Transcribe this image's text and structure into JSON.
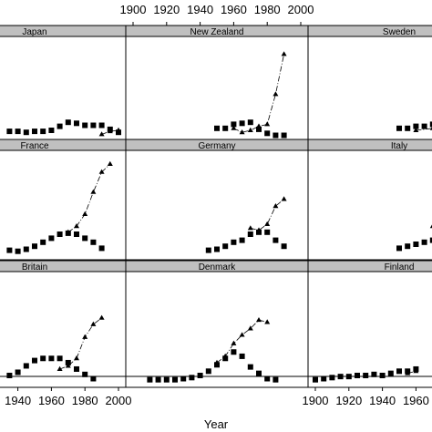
{
  "chart_data": {
    "type": "scatter",
    "layout": "trellis 3x3 (lattice), panels clipped at left and right edges of image",
    "xlabel": "Year",
    "xlim": [
      1900,
      2000
    ],
    "top_axis_ticks": [
      "1900",
      "1920",
      "1940",
      "1960",
      "1980",
      "2000"
    ],
    "bottom_left_ticks": [
      "1940",
      "1960",
      "1980",
      "2000"
    ],
    "bottom_right_ticks": [
      "1900",
      "1920",
      "1940",
      "1960"
    ],
    "strip_color": "#c0c0c0",
    "series_markers": {
      "squares": "filled square markers",
      "triangles": "filled triangle markers joined by dash-dot line"
    },
    "panels": [
      {
        "name": "Japan",
        "col": 0,
        "row": 0,
        "squares": [
          [
            1935,
            9
          ],
          [
            1940,
            9
          ],
          [
            1945,
            8
          ],
          [
            1950,
            9
          ],
          [
            1955,
            9
          ],
          [
            1960,
            10
          ],
          [
            1965,
            14
          ],
          [
            1970,
            18
          ],
          [
            1975,
            17
          ],
          [
            1980,
            15
          ],
          [
            1985,
            15
          ],
          [
            1990,
            15
          ],
          [
            1995,
            11
          ],
          [
            2000,
            8
          ]
        ],
        "triangles": [
          [
            1990,
            6
          ],
          [
            1995,
            9
          ],
          [
            2000,
            10
          ]
        ]
      },
      {
        "name": "New Zealand",
        "col": 1,
        "row": 0,
        "squares": [
          [
            1950,
            12
          ],
          [
            1955,
            12
          ],
          [
            1960,
            16
          ],
          [
            1965,
            17
          ],
          [
            1970,
            18
          ],
          [
            1975,
            11
          ],
          [
            1980,
            7
          ],
          [
            1985,
            5
          ],
          [
            1990,
            5
          ]
        ],
        "triangles": [
          [
            1960,
            12
          ],
          [
            1965,
            8
          ],
          [
            1970,
            10
          ],
          [
            1975,
            14
          ],
          [
            1980,
            16
          ],
          [
            1985,
            46
          ],
          [
            1990,
            86
          ]
        ]
      },
      {
        "name": "Sweden",
        "col": 2,
        "row": 0,
        "squares": [
          [
            1950,
            12
          ],
          [
            1955,
            12
          ],
          [
            1960,
            14
          ],
          [
            1965,
            14
          ],
          [
            1970,
            16
          ],
          [
            1975,
            15
          ]
        ],
        "triangles": [
          [
            1960,
            10
          ],
          [
            1970,
            12
          ]
        ]
      },
      {
        "name": "France",
        "col": 0,
        "row": 1,
        "squares": [
          [
            1935,
            4
          ],
          [
            1940,
            3
          ],
          [
            1945,
            5
          ],
          [
            1950,
            8
          ],
          [
            1955,
            12
          ],
          [
            1960,
            16
          ],
          [
            1965,
            20
          ],
          [
            1970,
            21
          ],
          [
            1975,
            20
          ],
          [
            1980,
            16
          ],
          [
            1985,
            12
          ],
          [
            1990,
            6
          ]
        ],
        "triangles": [
          [
            1970,
            22
          ],
          [
            1975,
            28
          ],
          [
            1980,
            40
          ],
          [
            1985,
            62
          ],
          [
            1990,
            82
          ],
          [
            1995,
            90
          ]
        ]
      },
      {
        "name": "Germany",
        "col": 1,
        "row": 1,
        "squares": [
          [
            1945,
            4
          ],
          [
            1950,
            5
          ],
          [
            1955,
            8
          ],
          [
            1960,
            12
          ],
          [
            1965,
            14
          ],
          [
            1970,
            20
          ],
          [
            1975,
            22
          ],
          [
            1980,
            22
          ],
          [
            1985,
            14
          ],
          [
            1990,
            8
          ]
        ],
        "triangles": [
          [
            1970,
            26
          ],
          [
            1975,
            24
          ],
          [
            1980,
            30
          ],
          [
            1985,
            48
          ],
          [
            1990,
            55
          ]
        ]
      },
      {
        "name": "Italy",
        "col": 2,
        "row": 1,
        "squares": [
          [
            1950,
            6
          ],
          [
            1955,
            8
          ],
          [
            1960,
            10
          ],
          [
            1965,
            12
          ],
          [
            1970,
            14
          ],
          [
            1975,
            22
          ],
          [
            1980,
            30
          ]
        ],
        "triangles": [
          [
            1970,
            28
          ],
          [
            1975,
            34
          ],
          [
            1980,
            40
          ]
        ]
      },
      {
        "name": "Britain",
        "col": 0,
        "row": 2,
        "squares": [
          [
            1935,
            6
          ],
          [
            1940,
            9
          ],
          [
            1945,
            15
          ],
          [
            1950,
            20
          ],
          [
            1955,
            22
          ],
          [
            1960,
            22
          ],
          [
            1965,
            22
          ],
          [
            1970,
            18
          ],
          [
            1975,
            12
          ],
          [
            1980,
            7
          ],
          [
            1985,
            3
          ]
        ],
        "triangles": [
          [
            1965,
            12
          ],
          [
            1970,
            15
          ],
          [
            1975,
            22
          ],
          [
            1980,
            42
          ],
          [
            1985,
            54
          ],
          [
            1990,
            60
          ]
        ]
      },
      {
        "name": "Denmark",
        "col": 1,
        "row": 2,
        "squares": [
          [
            1910,
            2
          ],
          [
            1915,
            2
          ],
          [
            1920,
            2
          ],
          [
            1925,
            2
          ],
          [
            1930,
            3
          ],
          [
            1935,
            4
          ],
          [
            1940,
            6
          ],
          [
            1945,
            10
          ],
          [
            1950,
            16
          ],
          [
            1955,
            22
          ],
          [
            1960,
            28
          ],
          [
            1965,
            24
          ],
          [
            1970,
            14
          ],
          [
            1975,
            8
          ],
          [
            1980,
            3
          ],
          [
            1985,
            2
          ]
        ],
        "triangles": [
          [
            1950,
            18
          ],
          [
            1955,
            24
          ],
          [
            1960,
            36
          ],
          [
            1965,
            44
          ],
          [
            1970,
            50
          ],
          [
            1975,
            58
          ],
          [
            1980,
            56
          ]
        ]
      },
      {
        "name": "Finland",
        "col": 2,
        "row": 2,
        "squares": [
          [
            1900,
            2
          ],
          [
            1905,
            3
          ],
          [
            1910,
            4
          ],
          [
            1915,
            5
          ],
          [
            1920,
            5
          ],
          [
            1925,
            6
          ],
          [
            1930,
            6
          ],
          [
            1935,
            7
          ],
          [
            1940,
            6
          ],
          [
            1945,
            8
          ],
          [
            1950,
            10
          ],
          [
            1955,
            10
          ],
          [
            1960,
            12
          ]
        ],
        "triangles": [
          [
            1955,
            8
          ],
          [
            1960,
            10
          ]
        ]
      }
    ]
  }
}
